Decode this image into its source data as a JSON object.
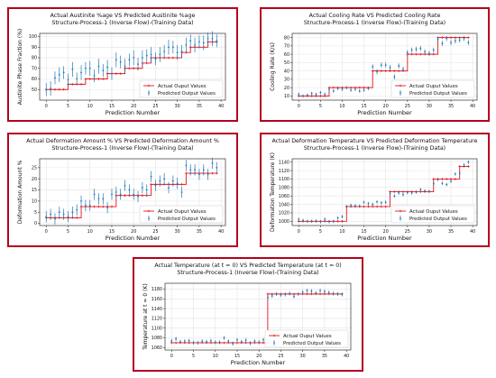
{
  "chart_data": [
    {
      "type": "scatter",
      "title": "Actual Austinite %age VS Predicted Austinite %age",
      "subtitle": "Structure-Process-1 (Inverse Flow)-(Training Data)",
      "xlabel": "Prediction Number",
      "ylabel": "Austinite Phase Fraction (%)",
      "xlim": [
        -1.5,
        41
      ],
      "ylim": [
        40,
        103
      ],
      "xticks": [
        0,
        5,
        10,
        15,
        20,
        25,
        30,
        35,
        40
      ],
      "yticks": [
        50,
        60,
        70,
        80,
        90,
        100
      ],
      "grid": true,
      "legend": "lower-right",
      "x": [
        0,
        1,
        2,
        3,
        4,
        5,
        6,
        7,
        8,
        9,
        10,
        11,
        12,
        13,
        14,
        15,
        16,
        17,
        18,
        19,
        20,
        21,
        22,
        23,
        24,
        25,
        26,
        27,
        28,
        29,
        30,
        31,
        32,
        33,
        34,
        35,
        36,
        37,
        38,
        39
      ],
      "series": [
        {
          "name": "Actual Ouput Values",
          "values": [
            50,
            50,
            50,
            50,
            50,
            55,
            55,
            55,
            55,
            60,
            60,
            60,
            60,
            60,
            65,
            65,
            65,
            65,
            70,
            70,
            70,
            70,
            75,
            75,
            80,
            80,
            80,
            80,
            80,
            80,
            80,
            85,
            85,
            90,
            90,
            90,
            90,
            95,
            95,
            95
          ]
        },
        {
          "name": "Predicted Output Values",
          "values": [
            50,
            51,
            61,
            64,
            66,
            59,
            69,
            60,
            66,
            70,
            70,
            63,
            72,
            68,
            71,
            65,
            78,
            76,
            72,
            78,
            80,
            74,
            80,
            82,
            83,
            79,
            83,
            86,
            90,
            90,
            85,
            86,
            92,
            96,
            92,
            95,
            94,
            98,
            98,
            96
          ],
          "errors": [
            6,
            7,
            6,
            7,
            6,
            6,
            7,
            6,
            7,
            6,
            7,
            6,
            7,
            6,
            7,
            6,
            7,
            6,
            7,
            6,
            7,
            6,
            7,
            6,
            7,
            6,
            7,
            6,
            7,
            6,
            7,
            6,
            7,
            6,
            7,
            6,
            7,
            6,
            7,
            6
          ]
        }
      ]
    },
    {
      "type": "scatter",
      "title": "Actual Cooling Rate VS Predicted Cooling Rate",
      "subtitle": "Structure-Process-1 (Inverse Flow)-(Training Data)",
      "xlabel": "Prediction Number",
      "ylabel": "Cooling Rate (K/s)",
      "xlim": [
        -1.5,
        41
      ],
      "ylim": [
        5,
        85
      ],
      "xticks": [
        0,
        5,
        10,
        15,
        20,
        25,
        30,
        35,
        40
      ],
      "yticks": [
        10,
        20,
        30,
        40,
        50,
        60,
        70,
        80
      ],
      "grid": true,
      "legend": "lower-right",
      "x": [
        0,
        1,
        2,
        3,
        4,
        5,
        6,
        7,
        8,
        9,
        10,
        11,
        12,
        13,
        14,
        15,
        16,
        17,
        18,
        19,
        20,
        21,
        22,
        23,
        24,
        25,
        26,
        27,
        28,
        29,
        30,
        31,
        32,
        33,
        34,
        35,
        36,
        37,
        38,
        39
      ],
      "series": [
        {
          "name": "Actual Ouput Values",
          "values": [
            10,
            10,
            10,
            10,
            10,
            10,
            10,
            20,
            20,
            20,
            20,
            20,
            20,
            20,
            20,
            20,
            20,
            40,
            40,
            40,
            40,
            40,
            40,
            40,
            40,
            60,
            60,
            60,
            60,
            60,
            60,
            60,
            80,
            80,
            80,
            80,
            80,
            80,
            80,
            80
          ]
        },
        {
          "name": "Predicted Output Values",
          "values": [
            12,
            10,
            11,
            13,
            12,
            14,
            12,
            18,
            16,
            19,
            18,
            20,
            17,
            18,
            16,
            17,
            19,
            45,
            39,
            47,
            47,
            44,
            33,
            46,
            42,
            62,
            65,
            66,
            67,
            63,
            61,
            65,
            78,
            73,
            79,
            74,
            76,
            77,
            79,
            74
          ],
          "errors": [
            2,
            2,
            2,
            2,
            2,
            2,
            2,
            2,
            2,
            2,
            2,
            2,
            2,
            2,
            2,
            2,
            2,
            3,
            3,
            3,
            3,
            3,
            3,
            3,
            3,
            3,
            3,
            3,
            3,
            3,
            3,
            3,
            3,
            3,
            3,
            3,
            3,
            3,
            3,
            3
          ]
        }
      ]
    },
    {
      "type": "scatter",
      "title": "Actual Deformation Amount % VS Predicted Deformation Amount %",
      "subtitle": "Structure-Process-1 (Inverse Flow)-(Training Data)",
      "xlabel": "Prediction Number",
      "ylabel": "Deformation Amount %",
      "xlim": [
        -1.5,
        41
      ],
      "ylim": [
        -1,
        29
      ],
      "xticks": [
        0,
        5,
        10,
        15,
        20,
        25,
        30,
        35,
        40
      ],
      "yticks": [
        0,
        5,
        10,
        15,
        20,
        25
      ],
      "grid": true,
      "legend": "lower-right",
      "x": [
        0,
        1,
        2,
        3,
        4,
        5,
        6,
        7,
        8,
        9,
        10,
        11,
        12,
        13,
        14,
        15,
        16,
        17,
        18,
        19,
        20,
        21,
        22,
        23,
        24,
        25,
        26,
        27,
        28,
        29,
        30,
        31,
        32,
        33,
        34,
        35,
        36,
        37,
        38,
        39
      ],
      "series": [
        {
          "name": "Actual Ouput Values",
          "values": [
            2.5,
            2.5,
            2.5,
            2.5,
            2.5,
            2.5,
            2.5,
            2.5,
            7.5,
            7.5,
            7.5,
            7.5,
            7.5,
            7.5,
            7.5,
            7.5,
            12.5,
            12.5,
            12.5,
            12.5,
            12.5,
            12.5,
            12.5,
            12.5,
            17.5,
            17.5,
            17.5,
            17.5,
            17.5,
            17.5,
            17.5,
            17.5,
            22.5,
            22.5,
            22.5,
            22.5,
            22.5,
            22.5,
            22.5,
            22.5
          ]
        },
        {
          "name": "Predicted Output Values",
          "values": [
            3,
            4,
            2,
            5,
            4,
            3,
            5,
            6,
            10,
            8,
            8,
            13,
            11,
            11,
            7,
            13,
            14,
            13,
            17,
            15,
            13,
            12,
            16,
            15,
            21,
            17,
            19,
            20,
            16,
            19,
            18,
            14,
            26,
            24,
            24,
            22,
            24,
            22,
            27,
            25
          ],
          "errors": [
            2.5,
            2.5,
            2.5,
            2.5,
            2.5,
            2.5,
            2.5,
            2.5,
            2.5,
            2.5,
            2.5,
            2.5,
            2.5,
            2.5,
            2.5,
            2.5,
            2.5,
            2.5,
            2.5,
            2.5,
            2.5,
            2.5,
            2.5,
            2.5,
            2.5,
            2.5,
            2.5,
            2.5,
            2.5,
            2.5,
            2.5,
            2.5,
            2.5,
            2.5,
            2.5,
            2.5,
            2.5,
            2.5,
            2.5,
            2.5
          ]
        }
      ]
    },
    {
      "type": "scatter",
      "title": "Actual Deformation Temperature VS Predicted Deformation Temperature",
      "subtitle": "Structure-Process-1 (Inverse Flow)-(Training Data)",
      "xlabel": "Prediction Number",
      "ylabel": "Deformation Temperature (K)",
      "xlim": [
        -1.5,
        41
      ],
      "ylim": [
        990,
        1148
      ],
      "xticks": [
        0,
        5,
        10,
        15,
        20,
        25,
        30,
        35,
        40
      ],
      "yticks": [
        1000,
        1020,
        1040,
        1060,
        1080,
        1100,
        1120,
        1140
      ],
      "grid": true,
      "legend": "lower-right",
      "x": [
        0,
        1,
        2,
        3,
        4,
        5,
        6,
        7,
        8,
        9,
        10,
        11,
        12,
        13,
        14,
        15,
        16,
        17,
        18,
        19,
        20,
        21,
        22,
        23,
        24,
        25,
        26,
        27,
        28,
        29,
        30,
        31,
        32,
        33,
        34,
        35,
        36,
        37,
        38,
        39
      ],
      "series": [
        {
          "name": "Actual Ouput Values",
          "values": [
            1000,
            1000,
            1000,
            1000,
            1000,
            1000,
            1000,
            1000,
            1000,
            1000,
            1000,
            1035,
            1035,
            1035,
            1035,
            1035,
            1035,
            1035,
            1035,
            1035,
            1035,
            1070,
            1070,
            1070,
            1070,
            1070,
            1070,
            1070,
            1070,
            1070,
            1070,
            1100,
            1100,
            1100,
            1100,
            1100,
            1100,
            1130,
            1130,
            1130
          ]
        },
        {
          "name": "Predicted Output Values",
          "values": [
            1005,
            1002,
            1000,
            1000,
            1001,
            999,
            1005,
            999,
            1000,
            1008,
            1011,
            1035,
            1038,
            1037,
            1036,
            1045,
            1042,
            1040,
            1046,
            1044,
            1045,
            1066,
            1060,
            1067,
            1063,
            1068,
            1067,
            1069,
            1075,
            1072,
            1071,
            1089,
            1099,
            1090,
            1087,
            1095,
            1112,
            1114,
            1133,
            1140
          ],
          "errors": [
            4,
            4,
            4,
            4,
            4,
            4,
            4,
            4,
            4,
            4,
            4,
            4,
            4,
            4,
            4,
            4,
            4,
            4,
            4,
            4,
            4,
            4,
            4,
            4,
            4,
            4,
            4,
            4,
            4,
            4,
            4,
            4,
            4,
            4,
            4,
            4,
            4,
            4,
            4,
            4
          ]
        }
      ]
    },
    {
      "type": "scatter",
      "title": "Actual Temperature (at t = 0) VS Predicted Temperature (at t = 0)",
      "subtitle": "Structure-Process-1 (Inverse Flow)-(Training Data)",
      "xlabel": "Prediction Number",
      "ylabel": "Temperature at t = 0 (K)",
      "xlim": [
        -1.5,
        41
      ],
      "ylim": [
        1055,
        1192
      ],
      "xticks": [
        0,
        5,
        10,
        15,
        20,
        25,
        30,
        35,
        40
      ],
      "yticks": [
        1060,
        1080,
        1100,
        1120,
        1140,
        1160,
        1180
      ],
      "grid": true,
      "legend": "lower-right",
      "x": [
        0,
        1,
        2,
        3,
        4,
        5,
        6,
        7,
        8,
        9,
        10,
        11,
        12,
        13,
        14,
        15,
        16,
        17,
        18,
        19,
        20,
        21,
        22,
        23,
        24,
        25,
        26,
        27,
        28,
        29,
        30,
        31,
        32,
        33,
        34,
        35,
        36,
        37,
        38,
        39
      ],
      "series": [
        {
          "name": "Actual Ouput Values",
          "values": [
            1070,
            1070,
            1070,
            1070,
            1070,
            1070,
            1070,
            1070,
            1070,
            1070,
            1070,
            1070,
            1070,
            1070,
            1070,
            1070,
            1070,
            1070,
            1070,
            1070,
            1070,
            1070,
            1170,
            1170,
            1170,
            1170,
            1170,
            1170,
            1170,
            1170,
            1170,
            1170,
            1170,
            1170,
            1170,
            1170,
            1170,
            1170,
            1170,
            1170
          ]
        },
        {
          "name": "Predicted Output Values",
          "values": [
            1074,
            1078,
            1072,
            1073,
            1074,
            1070,
            1070,
            1073,
            1072,
            1074,
            1071,
            1071,
            1080,
            1073,
            1068,
            1076,
            1072,
            1075,
            1069,
            1073,
            1071,
            1076,
            1163,
            1166,
            1170,
            1168,
            1169,
            1171,
            1165,
            1170,
            1174,
            1177,
            1176,
            1172,
            1177,
            1175,
            1173,
            1171,
            1170,
            1169
          ],
          "errors": [
            4,
            4,
            4,
            4,
            4,
            4,
            4,
            4,
            4,
            4,
            4,
            4,
            4,
            4,
            4,
            4,
            4,
            4,
            4,
            4,
            4,
            4,
            4,
            4,
            4,
            4,
            4,
            4,
            4,
            4,
            4,
            4,
            4,
            4,
            4,
            4,
            4,
            4,
            4,
            4
          ]
        }
      ]
    }
  ],
  "colors": {
    "actual": "#e8141b",
    "predicted": "#1f78b4",
    "frame": "#b5001f"
  }
}
